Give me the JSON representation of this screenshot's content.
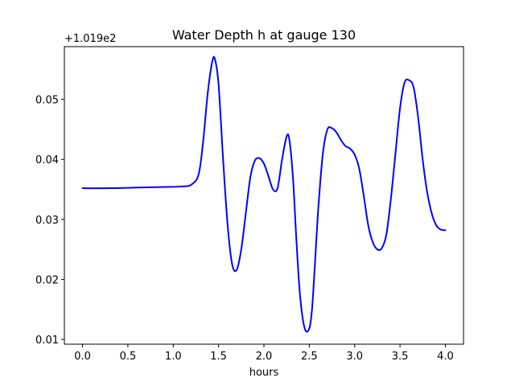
{
  "chart_data": {
    "type": "line",
    "title": "Water Depth h at gauge 130",
    "xlabel": "hours",
    "ylabel": "",
    "y_offset_label": "+1.019e2",
    "xlim": [
      -0.2,
      4.2
    ],
    "ylim": [
      0.0092,
      0.0588
    ],
    "xticks": [
      0.0,
      0.5,
      1.0,
      1.5,
      2.0,
      2.5,
      3.0,
      3.5,
      4.0
    ],
    "xtick_labels": [
      "0.0",
      "0.5",
      "1.0",
      "1.5",
      "2.0",
      "2.5",
      "3.0",
      "3.5",
      "4.0"
    ],
    "yticks": [
      0.01,
      0.02,
      0.03,
      0.04,
      0.05
    ],
    "ytick_labels": [
      "0.01",
      "0.02",
      "0.03",
      "0.04",
      "0.05"
    ],
    "grid": false,
    "colors": {
      "line": "#0000ff"
    },
    "series": [
      {
        "color": "#0000ff",
        "x": [
          0.0,
          0.3,
          0.6,
          0.9,
          1.1,
          1.2,
          1.28,
          1.33,
          1.38,
          1.43,
          1.46,
          1.5,
          1.55,
          1.6,
          1.65,
          1.7,
          1.75,
          1.8,
          1.85,
          1.9,
          1.95,
          2.0,
          2.05,
          2.1,
          2.15,
          2.2,
          2.25,
          2.28,
          2.32,
          2.36,
          2.4,
          2.45,
          2.5,
          2.53,
          2.56,
          2.6,
          2.65,
          2.7,
          2.75,
          2.8,
          2.85,
          2.9,
          2.95,
          3.0,
          3.05,
          3.1,
          3.15,
          3.2,
          3.25,
          3.3,
          3.35,
          3.4,
          3.45,
          3.5,
          3.55,
          3.6,
          3.65,
          3.7,
          3.75,
          3.8,
          3.85,
          3.9,
          3.95,
          4.0
        ],
        "y": [
          0.0352,
          0.0352,
          0.0353,
          0.0354,
          0.0355,
          0.0358,
          0.0375,
          0.043,
          0.051,
          0.0563,
          0.0567,
          0.0525,
          0.04,
          0.029,
          0.0225,
          0.0216,
          0.025,
          0.031,
          0.037,
          0.0398,
          0.0402,
          0.0393,
          0.0372,
          0.035,
          0.0352,
          0.04,
          0.0438,
          0.0433,
          0.037,
          0.026,
          0.017,
          0.0118,
          0.0118,
          0.015,
          0.022,
          0.032,
          0.041,
          0.045,
          0.0452,
          0.0445,
          0.0432,
          0.0422,
          0.0418,
          0.0408,
          0.0385,
          0.034,
          0.029,
          0.0262,
          0.025,
          0.0252,
          0.0275,
          0.0335,
          0.041,
          0.0485,
          0.0528,
          0.0532,
          0.052,
          0.047,
          0.04,
          0.0345,
          0.031,
          0.029,
          0.0283,
          0.0282
        ]
      }
    ]
  }
}
